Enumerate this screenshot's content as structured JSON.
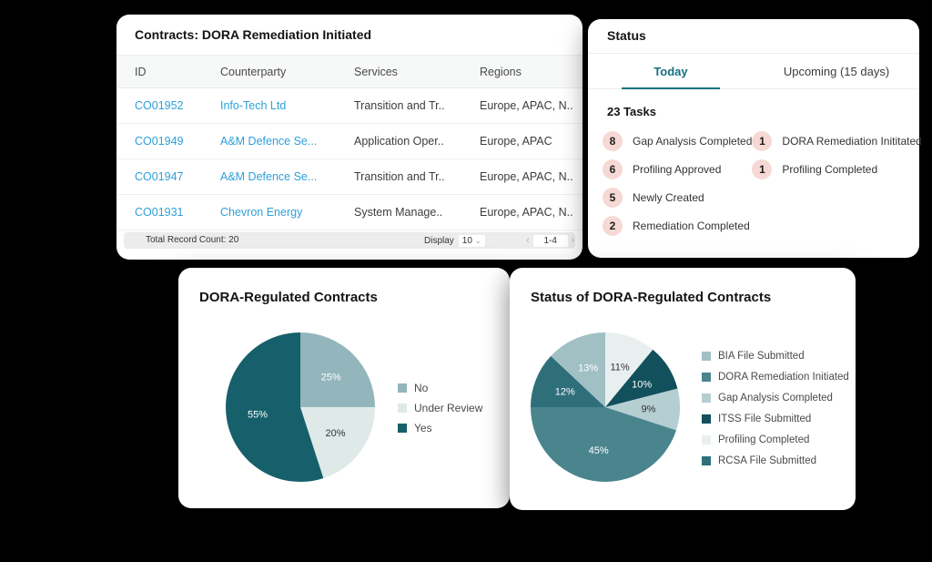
{
  "colors": {
    "accent_teal": "#15707e",
    "link_blue": "#2da0da",
    "badge_pink": "#f6d9d4",
    "footer_gray": "#ececec"
  },
  "icons": {
    "chevron_down": "⌄",
    "chevron_left": "‹",
    "chevron_right": "›"
  },
  "contracts_table": {
    "title": "Contracts: DORA Remediation Initiated",
    "columns": [
      "ID",
      "Counterparty",
      "Services",
      "Regions"
    ],
    "rows": [
      {
        "id": "CO01952",
        "counterparty": "Info-Tech Ltd",
        "services": "Transition and Tr..",
        "regions": "Europe, APAC, N.."
      },
      {
        "id": "CO01949",
        "counterparty": "A&M Defence Se...",
        "services": "Application Oper..",
        "regions": "Europe, APAC"
      },
      {
        "id": "CO01947",
        "counterparty": "A&M Defence Se...",
        "services": "Transition and Tr..",
        "regions": "Europe, APAC, N.."
      },
      {
        "id": "CO01931",
        "counterparty": "Chevron Energy",
        "services": "System Manage..",
        "regions": "Europe, APAC, N.."
      }
    ],
    "footer": {
      "total_label": "Total Record Count: 20",
      "display_label": "Display",
      "display_value": "10",
      "page_range": "1-4"
    }
  },
  "status_panel": {
    "title": "Status",
    "tabs": [
      {
        "label": "Today",
        "active": true
      },
      {
        "label": "Upcoming (15 days)",
        "active": false
      }
    ],
    "tasks_count_label": "23 Tasks",
    "tasks_left": [
      {
        "count": "8",
        "label": "Gap Analysis Completed"
      },
      {
        "count": "6",
        "label": "Profiling Approved"
      },
      {
        "count": "5",
        "label": "Newly Created"
      },
      {
        "count": "2",
        "label": "Remediation Completed"
      }
    ],
    "tasks_right": [
      {
        "count": "1",
        "label": "DORA Remediation Inititated"
      },
      {
        "count": "1",
        "label": "Profiling Completed"
      }
    ]
  },
  "chart_data": [
    {
      "type": "pie",
      "title": "DORA-Regulated Contracts",
      "start_angle_deg": 0,
      "direction": "clockwise",
      "legend_position": "right",
      "slices": [
        {
          "label": "No",
          "value": 25,
          "color": "#92b6bb",
          "label_color": "#ffffff"
        },
        {
          "label": "Under Review",
          "value": 20,
          "color": "#dfe9e8",
          "label_color": "#333333"
        },
        {
          "label": "Yes",
          "value": 55,
          "color": "#16606b",
          "label_color": "#ffffff"
        }
      ],
      "legend_order": [
        "No",
        "Under Review",
        "Yes"
      ]
    },
    {
      "type": "pie",
      "title": "Status of DORA-Regulated Contracts",
      "start_angle_deg": 0,
      "direction": "clockwise",
      "legend_position": "right",
      "slices": [
        {
          "label": "Profiling Completed",
          "value": 11,
          "color": "#e9efef",
          "label_color": "#333333"
        },
        {
          "label": "ITSS File Submitted",
          "value": 10,
          "color": "#11505c",
          "label_color": "#ffffff"
        },
        {
          "label": "Gap Analysis Completed",
          "value": 9,
          "color": "#b5ced1",
          "label_color": "#333333"
        },
        {
          "label": "DORA Remediation Initiated",
          "value": 45,
          "color": "#4a858e",
          "label_color": "#ffffff"
        },
        {
          "label": "RCSA File Submitted",
          "value": 12,
          "color": "#2e6f7a",
          "label_color": "#ffffff"
        },
        {
          "label": "BIA File Submitted",
          "value": 13,
          "color": "#a0c0c4",
          "label_color": "#ffffff"
        }
      ],
      "legend_order": [
        "BIA File Submitted",
        "DORA Remediation Initiated",
        "Gap Analysis Completed",
        "ITSS File Submitted",
        "Profiling Completed",
        "RCSA File Submitted"
      ]
    }
  ]
}
